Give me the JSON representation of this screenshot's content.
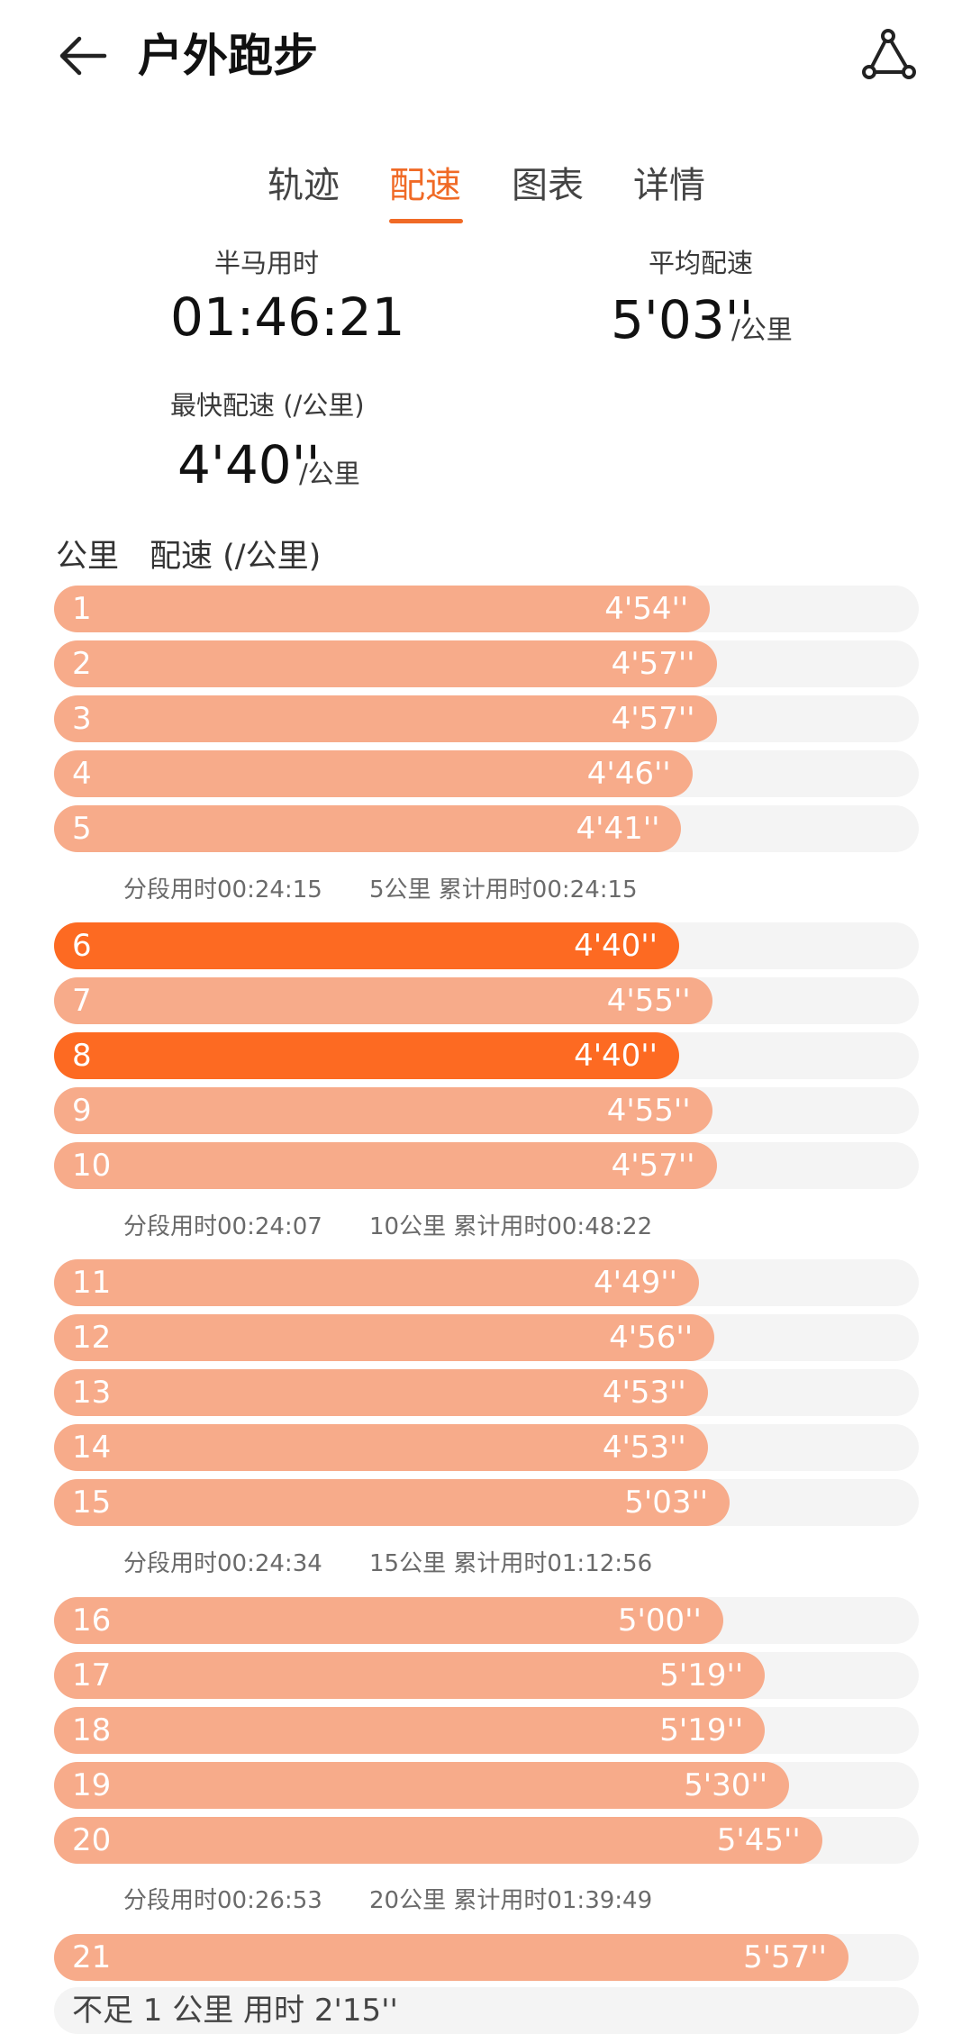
{
  "header": {
    "title": "户外跑步",
    "back_icon": "arrow-left-icon",
    "share_icon": "route-share-icon"
  },
  "tabs": [
    {
      "label": "轨迹",
      "active": false
    },
    {
      "label": "配速",
      "active": true
    },
    {
      "label": "图表",
      "active": false
    },
    {
      "label": "详情",
      "active": false
    }
  ],
  "stats": {
    "half_marathon": {
      "label": "半马用时",
      "value": "01:46:21"
    },
    "avg_pace": {
      "label": "平均配速",
      "value": "5'03''",
      "unit": "/公里"
    },
    "fastest_pace": {
      "label": "最快配速 (/公里)",
      "value": "4'40''",
      "unit": "/公里"
    }
  },
  "list_header": {
    "km": "公里",
    "pace": "配速 (/公里)"
  },
  "colors": {
    "accent": "#f06a26",
    "bar": "#f7ab8a",
    "bar_fastest": "#fd6a22",
    "track": "#f4f4f4"
  },
  "splits": [
    {
      "km": "1",
      "pace": "4'54''",
      "seconds": 294,
      "fastest": false
    },
    {
      "km": "2",
      "pace": "4'57''",
      "seconds": 297,
      "fastest": false
    },
    {
      "km": "3",
      "pace": "4'57''",
      "seconds": 297,
      "fastest": false
    },
    {
      "km": "4",
      "pace": "4'46''",
      "seconds": 286,
      "fastest": false
    },
    {
      "km": "5",
      "pace": "4'41''",
      "seconds": 281,
      "fastest": false
    },
    {
      "km": "6",
      "pace": "4'40''",
      "seconds": 280,
      "fastest": true
    },
    {
      "km": "7",
      "pace": "4'55''",
      "seconds": 295,
      "fastest": false
    },
    {
      "km": "8",
      "pace": "4'40''",
      "seconds": 280,
      "fastest": true
    },
    {
      "km": "9",
      "pace": "4'55''",
      "seconds": 295,
      "fastest": false
    },
    {
      "km": "10",
      "pace": "4'57''",
      "seconds": 297,
      "fastest": false
    },
    {
      "km": "11",
      "pace": "4'49''",
      "seconds": 289,
      "fastest": false
    },
    {
      "km": "12",
      "pace": "4'56''",
      "seconds": 296,
      "fastest": false
    },
    {
      "km": "13",
      "pace": "4'53''",
      "seconds": 293,
      "fastest": false
    },
    {
      "km": "14",
      "pace": "4'53''",
      "seconds": 293,
      "fastest": false
    },
    {
      "km": "15",
      "pace": "5'03''",
      "seconds": 303,
      "fastest": false
    },
    {
      "km": "16",
      "pace": "5'00''",
      "seconds": 300,
      "fastest": false
    },
    {
      "km": "17",
      "pace": "5'19''",
      "seconds": 319,
      "fastest": false
    },
    {
      "km": "18",
      "pace": "5'19''",
      "seconds": 319,
      "fastest": false
    },
    {
      "km": "19",
      "pace": "5'30''",
      "seconds": 330,
      "fastest": false
    },
    {
      "km": "20",
      "pace": "5'45''",
      "seconds": 345,
      "fastest": false
    },
    {
      "km": "21",
      "pace": "5'57''",
      "seconds": 357,
      "fastest": false
    }
  ],
  "summaries": [
    {
      "segment": "分段用时00:24:15",
      "cumulative": "5公里 累计用时00:24:15"
    },
    {
      "segment": "分段用时00:24:07",
      "cumulative": "10公里 累计用时00:48:22"
    },
    {
      "segment": "分段用时00:24:34",
      "cumulative": "15公里 累计用时01:12:56"
    },
    {
      "segment": "分段用时00:26:53",
      "cumulative": "20公里 累计用时01:39:49"
    }
  ],
  "remainder": "不足 1 公里 用时 2'15''"
}
